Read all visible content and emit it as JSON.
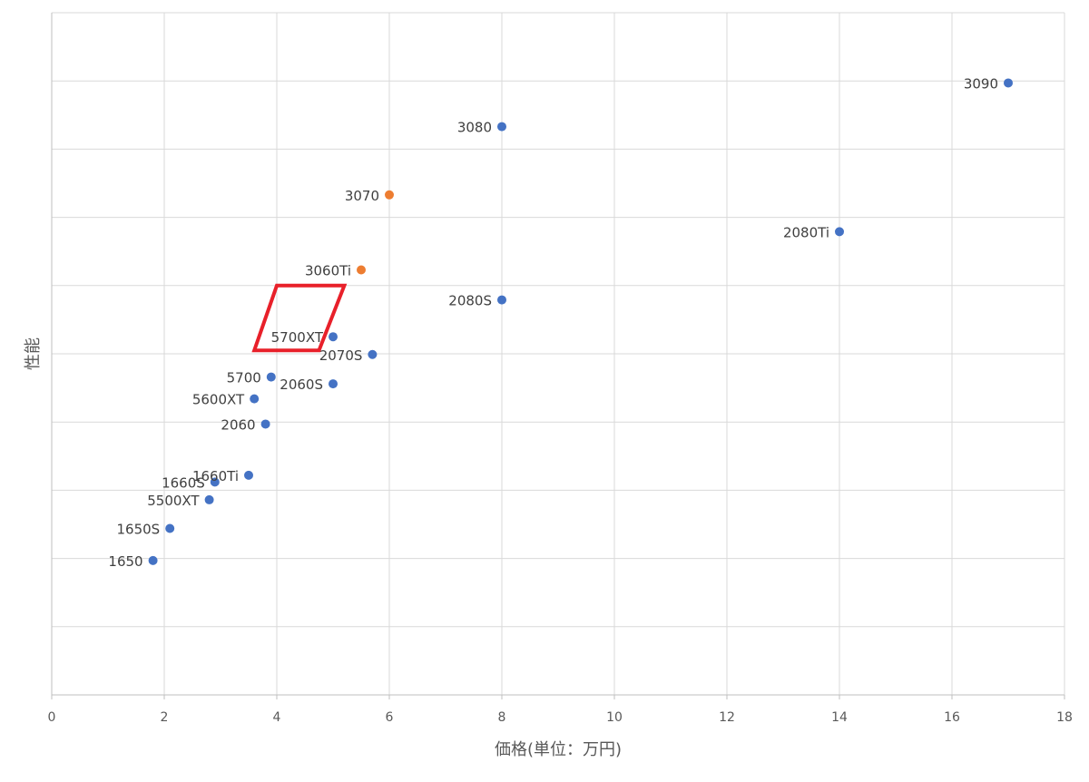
{
  "chart_data": {
    "type": "scatter",
    "title": "",
    "xlabel": "価格(単位：万円)",
    "ylabel": "性能",
    "xlim": [
      0,
      18
    ],
    "ylim": [
      0,
      10
    ],
    "x_ticks": [
      0,
      2,
      4,
      6,
      8,
      10,
      12,
      14,
      16,
      18
    ],
    "y_tick_labels_shown": false,
    "grid": true,
    "colors": {
      "default": "#4472c4",
      "highlight": "#ed7d31",
      "annotation": "#e8202a"
    },
    "points": [
      {
        "label": "3090",
        "x": 17.0,
        "y": 8.97,
        "color": "default"
      },
      {
        "label": "3080",
        "x": 8.0,
        "y": 8.33,
        "color": "default"
      },
      {
        "label": "3070",
        "x": 6.0,
        "y": 7.33,
        "color": "highlight"
      },
      {
        "label": "2080Ti",
        "x": 14.0,
        "y": 6.79,
        "color": "default"
      },
      {
        "label": "3060Ti",
        "x": 5.5,
        "y": 6.23,
        "color": "highlight"
      },
      {
        "label": "2080S",
        "x": 8.0,
        "y": 5.79,
        "color": "default"
      },
      {
        "label": "5700XT",
        "x": 5.0,
        "y": 5.25,
        "color": "default"
      },
      {
        "label": "2070S",
        "x": 5.7,
        "y": 4.99,
        "color": "default"
      },
      {
        "label": "5700",
        "x": 3.9,
        "y": 4.66,
        "color": "default"
      },
      {
        "label": "2060S",
        "x": 5.0,
        "y": 4.56,
        "color": "default"
      },
      {
        "label": "5600XT",
        "x": 3.6,
        "y": 4.34,
        "color": "default"
      },
      {
        "label": "2060",
        "x": 3.8,
        "y": 3.97,
        "color": "default"
      },
      {
        "label": "1660Ti",
        "x": 3.5,
        "y": 3.22,
        "color": "default"
      },
      {
        "label": "1660S",
        "x": 2.9,
        "y": 3.12,
        "color": "default"
      },
      {
        "label": "5500XT",
        "x": 2.8,
        "y": 2.86,
        "color": "default"
      },
      {
        "label": "1650S",
        "x": 2.1,
        "y": 2.44,
        "color": "default"
      },
      {
        "label": "1650",
        "x": 1.8,
        "y": 1.97,
        "color": "default"
      }
    ],
    "annotation": {
      "type": "parallelogram",
      "vertices": [
        [
          4.0,
          6.0
        ],
        [
          5.2,
          6.0
        ],
        [
          4.75,
          5.05
        ],
        [
          3.6,
          5.05
        ]
      ]
    }
  }
}
